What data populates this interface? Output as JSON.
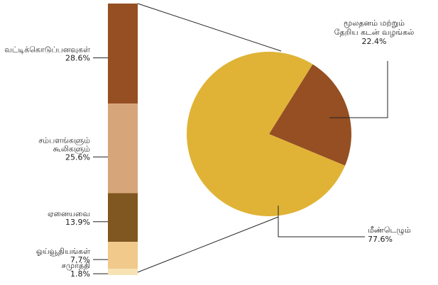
{
  "chart_data": [
    {
      "type": "bar",
      "subtype": "stacked-100",
      "categories": [
        "வட்டிக்கொடுப்பனவுகள்",
        "சம்பளங்களும் கூலிகளும்",
        "ஏனையவை",
        "ஓய்வூதியங்கள்",
        "சமுர்த்தி"
      ],
      "values": [
        28.6,
        25.6,
        13.9,
        7.7,
        1.8
      ],
      "value_labels": [
        "28.6%",
        "25.6%",
        "13.9%",
        "7.7%",
        "1.8%"
      ],
      "label_lines": [
        [
          "வட்டிக்கொடுப்பனவுகள்"
        ],
        [
          "சம்பளங்களும்",
          "கூலிகளும்"
        ],
        [
          "ஏனையவை"
        ],
        [
          "ஓய்வூதியங்கள்"
        ],
        [
          "சமுர்த்தி"
        ]
      ],
      "colors": [
        "#954f23",
        "#d7a57a",
        "#805720",
        "#f0c98b",
        "#f6e2b3"
      ]
    },
    {
      "type": "pie",
      "categories": [
        "மூலதனம் மற்றும் தேறிய கடன் வழங்கல்",
        "மீண்டெழும்"
      ],
      "values": [
        22.4,
        77.6
      ],
      "value_labels": [
        "22.4%",
        "77.6%"
      ],
      "label_lines": [
        [
          "மூலதனம்  மற்றும்",
          "தேறிய  கடன்  வழங்கல்"
        ],
        [
          "மீண்டெழும்"
        ]
      ],
      "colors": [
        "#954f23",
        "#e0b336"
      ]
    }
  ]
}
